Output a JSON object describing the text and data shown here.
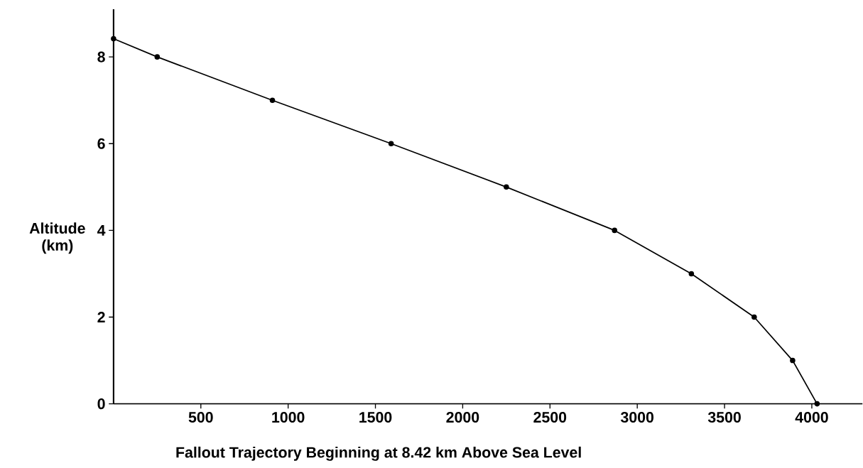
{
  "chart_data": {
    "type": "line",
    "xlabel": "Fallout Trajectory Beginning at 8.42 km  Above Sea Level",
    "ylabel": "Altitude (km)",
    "x": [
      0,
      250,
      910,
      1590,
      2250,
      2870,
      3310,
      3670,
      3890,
      4030
    ],
    "series": [
      {
        "color": "#000000",
        "values": [
          8.42,
          8,
          7,
          6,
          5,
          4,
          3,
          2,
          1,
          0
        ]
      }
    ],
    "xlim": [
      0,
      4290
    ],
    "ylim": [
      0,
      9.1
    ],
    "xticks": [
      500,
      1000,
      1500,
      2000,
      2500,
      3000,
      3500,
      4000
    ],
    "yticks": [
      0,
      2,
      4,
      6,
      8
    ],
    "marker": "circle",
    "line_style": "solid",
    "grid": false
  }
}
